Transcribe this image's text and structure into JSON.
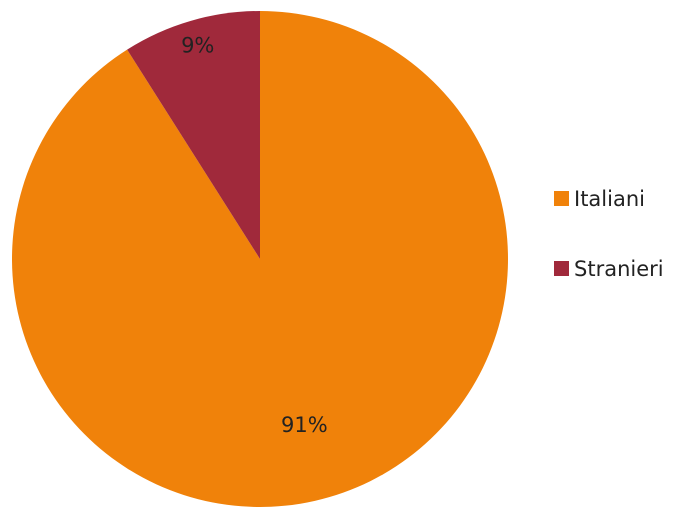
{
  "chart_data": {
    "type": "pie",
    "title": "",
    "slices": [
      {
        "label": "Italiani",
        "value": 91,
        "display": "91%",
        "color": "#F0820A"
      },
      {
        "label": "Stranieri",
        "value": 9,
        "display": "9%",
        "color": "#A0293B"
      }
    ],
    "start": "12 o'clock",
    "direction": "clockwise",
    "legend": {
      "placement": "right",
      "items": [
        "Italiani",
        "Stranieri"
      ]
    }
  }
}
